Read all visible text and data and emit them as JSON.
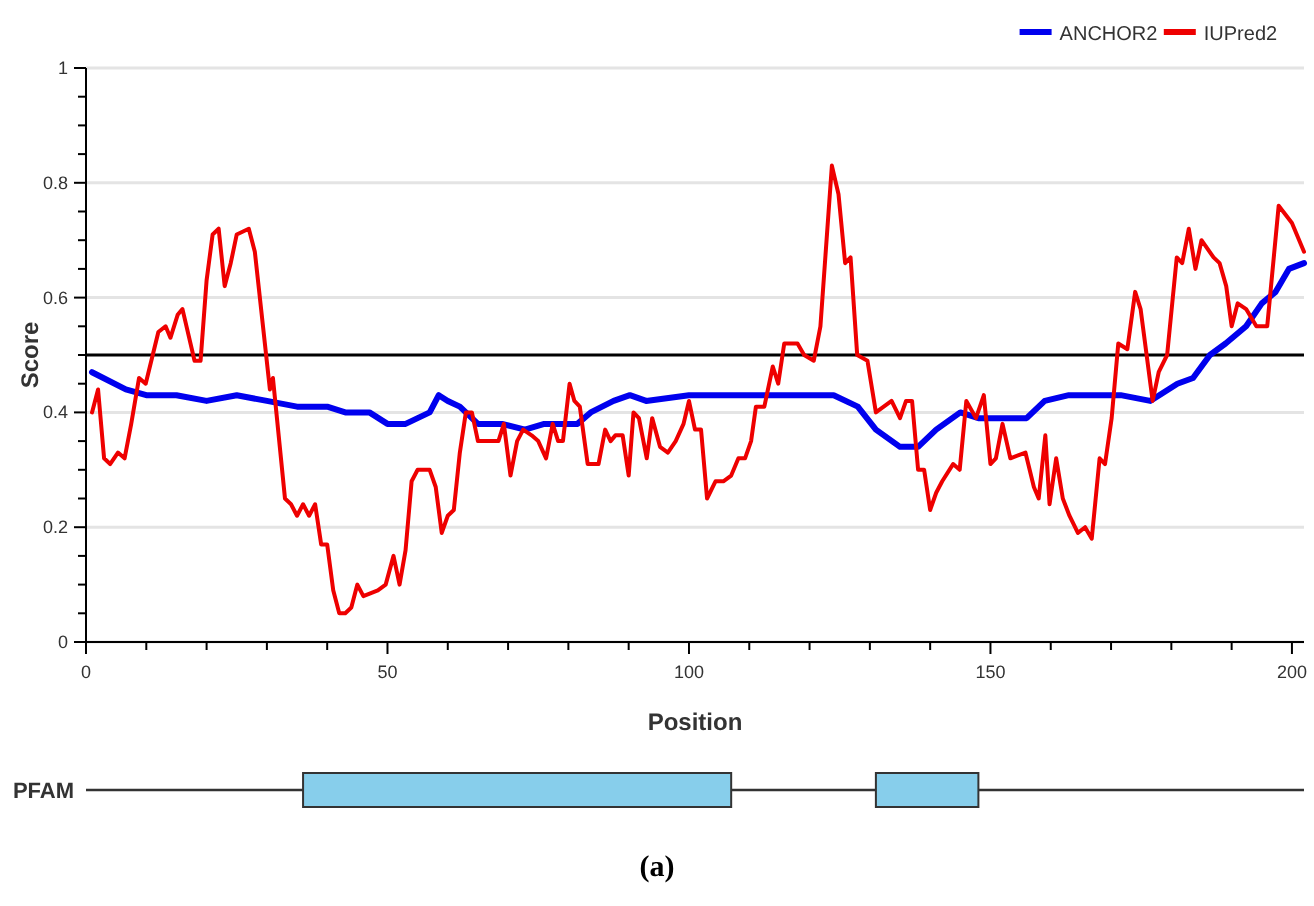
{
  "chart_data": [
    {
      "type": "line",
      "xlabel": "Position",
      "ylabel": "Score",
      "xlim": [
        0,
        202
      ],
      "ylim": [
        0,
        1
      ],
      "xticks": [
        0,
        {
          "value": 10,
          "label": null
        },
        {
          "value": 20,
          "label": null
        },
        {
          "value": 30,
          "label": null
        },
        {
          "value": 40,
          "label": null
        },
        50,
        {
          "value": 60,
          "label": null
        },
        {
          "value": 70,
          "label": null
        },
        {
          "value": 80,
          "label": null
        },
        {
          "value": 90,
          "label": null
        },
        100,
        {
          "value": 110,
          "label": null
        },
        {
          "value": 120,
          "label": null
        },
        {
          "value": 130,
          "label": null
        },
        {
          "value": 140,
          "label": null
        },
        150,
        {
          "value": 160,
          "label": null
        },
        {
          "value": 170,
          "label": null
        },
        {
          "value": 180,
          "label": null
        },
        {
          "value": 190,
          "label": null
        },
        200
      ],
      "yticks": [
        0,
        {
          "value": 0.05,
          "label": null
        },
        {
          "value": 0.1,
          "label": null
        },
        {
          "value": 0.15,
          "label": null
        },
        0.2,
        {
          "value": 0.25,
          "label": null
        },
        {
          "value": 0.3,
          "label": null
        },
        {
          "value": 0.35,
          "label": null
        },
        0.4,
        {
          "value": 0.45,
          "label": null
        },
        {
          "value": 0.5,
          "label": null
        },
        {
          "value": 0.55,
          "label": null
        },
        0.6,
        {
          "value": 0.65,
          "label": null
        },
        {
          "value": 0.7,
          "label": null
        },
        {
          "value": 0.75,
          "label": null
        },
        0.8,
        {
          "value": 0.85,
          "label": null
        },
        {
          "value": 0.9,
          "label": null
        },
        {
          "value": 0.95,
          "label": null
        },
        1
      ],
      "grid": "y",
      "legend": "top right",
      "marker": "none",
      "line_style": "solid",
      "ref_lines": [
        {
          "axis": "y",
          "value": 0.5,
          "color": "#000000"
        }
      ],
      "series": [
        {
          "name": "ANCHOR2",
          "color": "#0000ee",
          "x": [
            1,
            6.6,
            10,
            15,
            20,
            25,
            30,
            35,
            40,
            43,
            47,
            50,
            53,
            55,
            57,
            58.5,
            60,
            62,
            65,
            69,
            72.8,
            76,
            81.5,
            83.7,
            87.5,
            90.2,
            92.9,
            100,
            113,
            124,
            128,
            131,
            135,
            138,
            141,
            145,
            148,
            153,
            156,
            159,
            163,
            168,
            171.6,
            176.5,
            181,
            183.6,
            186.4,
            189,
            192.4,
            195,
            197.3,
            199.5,
            202
          ],
          "values": [
            0.47,
            0.44,
            0.43,
            0.43,
            0.42,
            0.43,
            0.42,
            0.41,
            0.41,
            0.4,
            0.4,
            0.38,
            0.38,
            0.39,
            0.4,
            0.43,
            0.42,
            0.41,
            0.38,
            0.38,
            0.37,
            0.38,
            0.38,
            0.4,
            0.42,
            0.43,
            0.42,
            0.43,
            0.43,
            0.43,
            0.41,
            0.37,
            0.34,
            0.34,
            0.37,
            0.4,
            0.39,
            0.39,
            0.39,
            0.42,
            0.43,
            0.43,
            0.43,
            0.42,
            0.45,
            0.46,
            0.5,
            0.52,
            0.55,
            0.59,
            0.61,
            0.65,
            0.66
          ]
        },
        {
          "name": "IUPred2",
          "color": "#ee0000",
          "x": [
            1,
            2,
            3,
            4,
            5.3,
            6.4,
            7.5,
            8.8,
            9.9,
            12,
            13.2,
            14,
            15.2,
            16,
            18,
            19,
            20,
            21,
            22,
            23,
            24,
            25,
            27,
            28,
            30.5,
            31,
            33,
            34,
            35,
            36,
            37,
            38,
            39,
            40,
            41,
            42,
            43,
            44,
            45,
            46,
            48.4,
            49.7,
            51,
            52,
            53,
            54,
            55,
            57,
            58,
            59,
            60,
            61,
            62,
            63,
            64,
            65,
            68.4,
            69.3,
            70.4,
            71.5,
            72.5,
            73.9,
            75,
            76.3,
            77.4,
            78.3,
            79.1,
            80.2,
            81,
            81.9,
            83.2,
            85,
            86.1,
            87,
            87.8,
            89,
            90,
            90.8,
            91.7,
            93,
            93.9,
            95.2,
            96.5,
            97.8,
            99.1,
            100,
            101,
            102,
            103,
            104.4,
            105.7,
            107,
            108.2,
            109.3,
            110.3,
            111.1,
            112.5,
            113.9,
            114.8,
            115.8,
            118,
            119.1,
            120.7,
            121.8,
            123.7,
            124.8,
            125.9,
            126.8,
            127.9,
            129.6,
            131,
            133.6,
            135,
            136,
            137,
            138,
            139,
            140,
            141,
            142,
            143.8,
            144.9,
            146,
            147.6,
            148.9,
            150,
            150.9,
            152,
            153.3,
            155.8,
            157.2,
            158,
            159.1,
            159.8,
            160.9,
            162,
            163.1,
            164.5,
            165.7,
            166.8,
            168.1,
            169,
            170.1,
            171.2,
            172.7,
            174,
            174.9,
            176.9,
            177.9,
            179.3,
            180.9,
            181.8,
            182.9,
            184,
            185,
            187,
            188,
            189.1,
            190,
            191,
            192.4,
            194.1,
            195.9,
            197.8,
            200,
            202
          ],
          "values": [
            0.4,
            0.44,
            0.32,
            0.31,
            0.33,
            0.32,
            0.38,
            0.46,
            0.45,
            0.54,
            0.55,
            0.53,
            0.57,
            0.58,
            0.49,
            0.49,
            0.63,
            0.71,
            0.72,
            0.62,
            0.66,
            0.71,
            0.72,
            0.68,
            0.44,
            0.46,
            0.25,
            0.24,
            0.22,
            0.24,
            0.22,
            0.24,
            0.17,
            0.17,
            0.09,
            0.05,
            0.05,
            0.06,
            0.1,
            0.08,
            0.09,
            0.1,
            0.15,
            0.1,
            0.16,
            0.28,
            0.3,
            0.3,
            0.27,
            0.19,
            0.22,
            0.23,
            0.33,
            0.4,
            0.4,
            0.35,
            0.35,
            0.38,
            0.29,
            0.35,
            0.37,
            0.36,
            0.35,
            0.32,
            0.38,
            0.35,
            0.35,
            0.45,
            0.42,
            0.41,
            0.31,
            0.31,
            0.37,
            0.35,
            0.36,
            0.36,
            0.29,
            0.4,
            0.39,
            0.32,
            0.39,
            0.34,
            0.33,
            0.35,
            0.38,
            0.42,
            0.37,
            0.37,
            0.25,
            0.28,
            0.28,
            0.29,
            0.32,
            0.32,
            0.35,
            0.41,
            0.41,
            0.48,
            0.45,
            0.52,
            0.52,
            0.5,
            0.49,
            0.55,
            0.83,
            0.78,
            0.66,
            0.67,
            0.5,
            0.49,
            0.4,
            0.42,
            0.39,
            0.42,
            0.42,
            0.3,
            0.3,
            0.23,
            0.26,
            0.28,
            0.31,
            0.3,
            0.42,
            0.39,
            0.43,
            0.31,
            0.32,
            0.38,
            0.32,
            0.33,
            0.27,
            0.25,
            0.36,
            0.24,
            0.32,
            0.25,
            0.22,
            0.19,
            0.2,
            0.18,
            0.32,
            0.31,
            0.39,
            0.52,
            0.51,
            0.61,
            0.58,
            0.42,
            0.47,
            0.5,
            0.67,
            0.66,
            0.72,
            0.65,
            0.7,
            0.67,
            0.66,
            0.62,
            0.55,
            0.59,
            0.58,
            0.55,
            0.55,
            0.76,
            0.73,
            0.68
          ]
        }
      ]
    },
    {
      "type": "bar",
      "orientation": "horizontal",
      "categories": [
        "PFAM"
      ],
      "xlim": [
        0,
        202
      ],
      "tick_labels": "y",
      "annotations": [
        "(a)"
      ],
      "series": [
        {
          "color": "#87ceeb",
          "values": [
            71
          ],
          "base": [
            36
          ]
        },
        {
          "color": "#87ceeb",
          "values": [
            17
          ],
          "base": [
            131
          ]
        }
      ]
    }
  ]
}
